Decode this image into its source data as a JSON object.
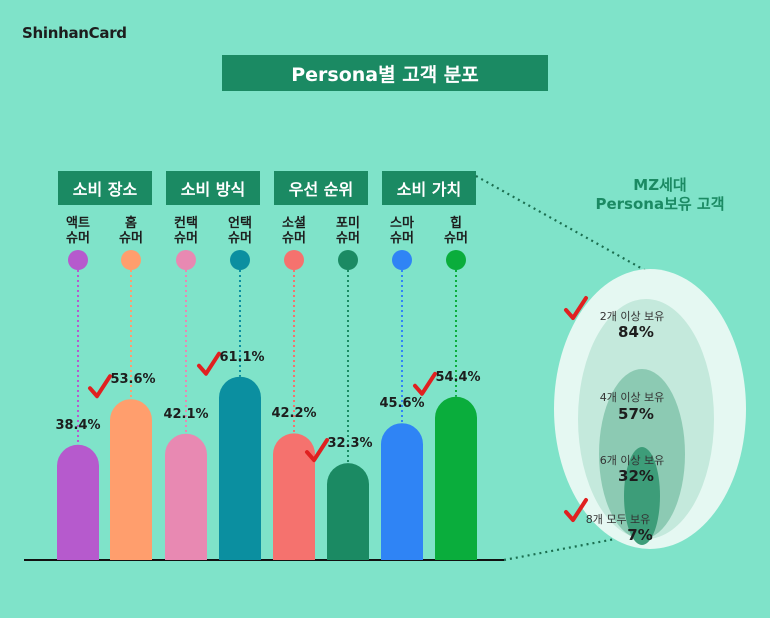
{
  "brand": "ShinhanCard",
  "title": "Persona별 고객 분포",
  "groups": [
    "소비 장소",
    "소비 방식",
    "우선 순위",
    "소비 가치"
  ],
  "chart_data": {
    "type": "bar",
    "categories": [
      "액트 슈머",
      "홈 슈머",
      "컨택 슈머",
      "언택 슈머",
      "소셜 슈머",
      "포미 슈머",
      "스마 슈머",
      "힙 슈머"
    ],
    "categories_display": [
      [
        "액트",
        "슈머"
      ],
      [
        "홈",
        "슈머"
      ],
      [
        "컨택",
        "슈머"
      ],
      [
        "언택",
        "슈머"
      ],
      [
        "소셜",
        "슈머"
      ],
      [
        "포미",
        "슈머"
      ],
      [
        "스마",
        "슈머"
      ],
      [
        "힙",
        "슈머"
      ]
    ],
    "values": [
      38.4,
      53.6,
      42.1,
      61.1,
      42.2,
      32.3,
      45.6,
      54.4
    ],
    "value_labels": [
      "38.4%",
      "53.6%",
      "42.1%",
      "61.1%",
      "42.2%",
      "32.3%",
      "45.6%",
      "54.4%"
    ],
    "checked": [
      false,
      true,
      false,
      true,
      false,
      true,
      false,
      true
    ],
    "colors": [
      "#b65acd",
      "#ff9e6d",
      "#e889b2",
      "#0b8fa0",
      "#f5726e",
      "#1b8a63",
      "#2f84f5",
      "#0aad3c"
    ],
    "ylim": [
      0,
      100
    ]
  },
  "mz": {
    "title_line1": "MZ세대",
    "title_line2": "Persona보유 고객",
    "rings": [
      {
        "label": "2개 이상 보유",
        "value": "84%",
        "checked": true
      },
      {
        "label": "4개 이상 보유",
        "value": "57%",
        "checked": false
      },
      {
        "label": "6개 이상 보유",
        "value": "32%",
        "checked": false
      },
      {
        "label": "8개 모두 보유",
        "value": "7%",
        "checked": true
      }
    ]
  }
}
